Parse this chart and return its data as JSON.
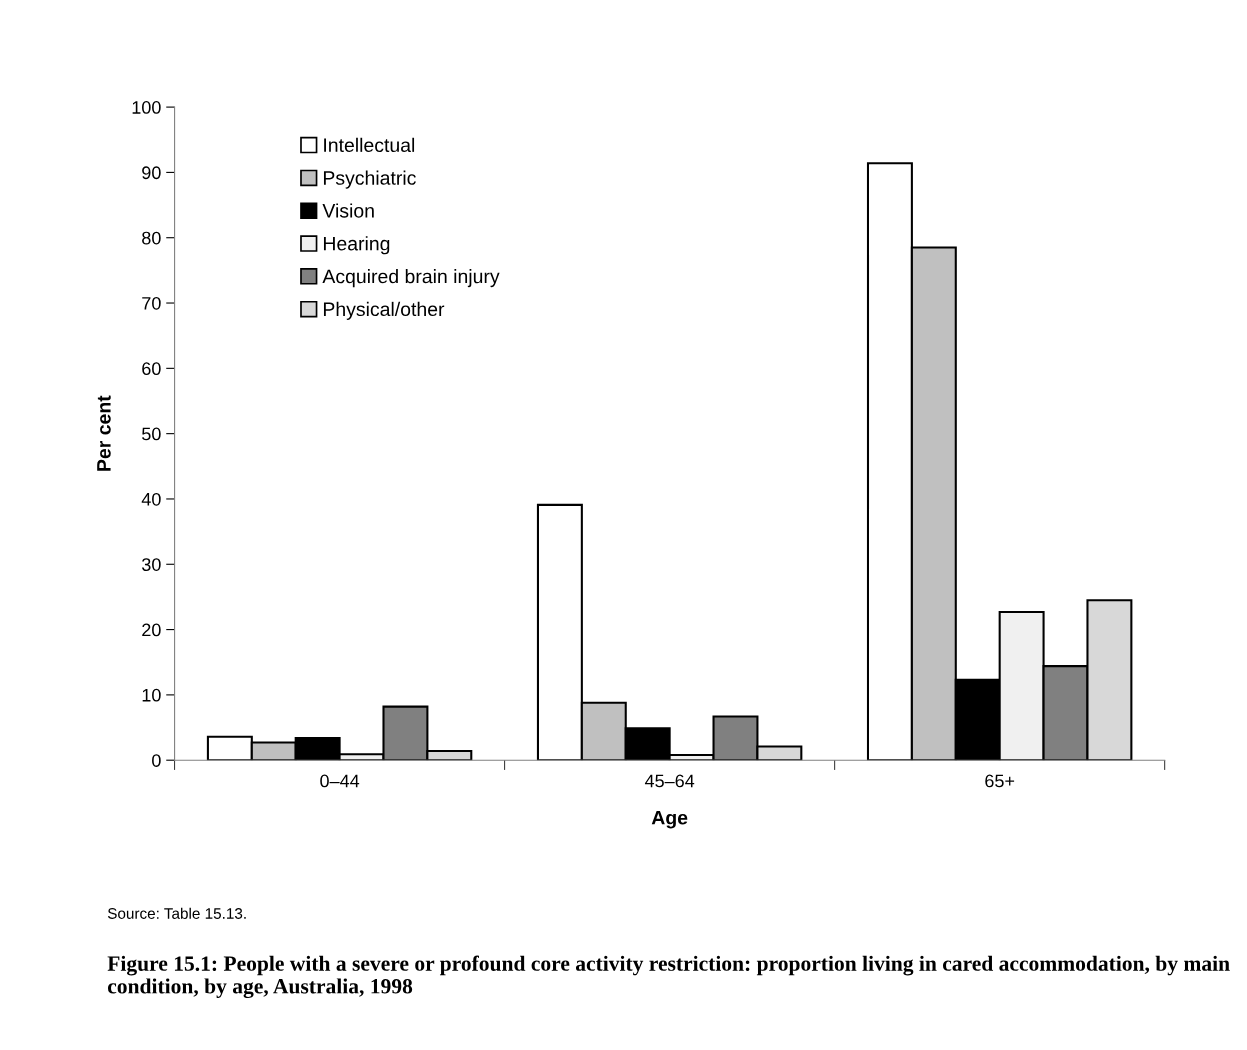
{
  "chart_data": {
    "type": "bar",
    "title": "Figure 15.1: People with a severe or profound core activity restriction: proportion living in cared accommodation, by main condition, by age, Australia, 1998",
    "xlabel": "Age",
    "ylabel": "Per cent",
    "annotations": [
      "Source: Table 15.13."
    ],
    "categories": [
      "0–44",
      "45–64",
      "65+"
    ],
    "series": [
      {
        "name": "Intellectual",
        "color": "#ffffff",
        "values": [
          3.6,
          39.1,
          91.4
        ]
      },
      {
        "name": "Psychiatric",
        "color": "#c0c0c0",
        "values": [
          2.7,
          8.8,
          78.5
        ]
      },
      {
        "name": "Vision",
        "color": "#000000",
        "values": [
          3.4,
          4.9,
          12.3
        ]
      },
      {
        "name": "Hearing",
        "color": "#f0f0f0",
        "values": [
          0.9,
          0.8,
          22.7
        ]
      },
      {
        "name": "Acquired brain injury",
        "color": "#808080",
        "values": [
          8.2,
          6.7,
          14.4
        ]
      },
      {
        "name": "Physical/other",
        "color": "#d8d8d8",
        "values": [
          1.4,
          2.1,
          24.5
        ]
      }
    ],
    "ylim": [
      0,
      100
    ],
    "yticks": [
      0,
      10,
      20,
      30,
      40,
      50,
      60,
      70,
      80,
      90,
      100
    ],
    "grid": false,
    "legend": "top left"
  }
}
